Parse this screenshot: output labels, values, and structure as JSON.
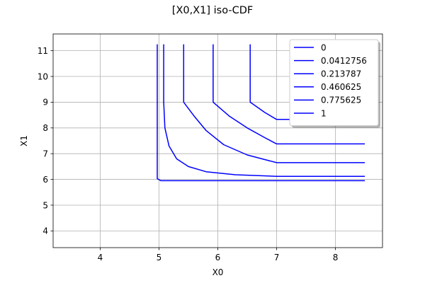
{
  "chart_data": {
    "type": "line",
    "title": "[X0,X1] iso-CDF",
    "xlabel": "X0",
    "ylabel": "X1",
    "xlim": [
      3.2,
      8.8
    ],
    "ylim": [
      3.35,
      11.65
    ],
    "xticks": [
      4,
      5,
      6,
      7,
      8
    ],
    "yticks": [
      4,
      5,
      6,
      7,
      8,
      9,
      10,
      11
    ],
    "grid": true,
    "legend_position": "top-right",
    "line_color": "#0000ff",
    "series": [
      {
        "name": "0",
        "x": [
          4.97,
          4.97,
          4.97,
          5.03,
          8.5
        ],
        "y": [
          11.25,
          9.0,
          6.03,
          5.95,
          5.95
        ]
      },
      {
        "name": "0.0412756",
        "x": [
          5.08,
          5.08,
          5.1,
          5.17,
          5.3,
          5.5,
          5.8,
          6.3,
          7.0,
          8.5
        ],
        "y": [
          11.25,
          9.0,
          8.0,
          7.3,
          6.8,
          6.5,
          6.3,
          6.18,
          6.12,
          6.12
        ]
      },
      {
        "name": "0.213787",
        "x": [
          5.42,
          5.42,
          5.6,
          5.8,
          6.1,
          6.5,
          7.0,
          8.5
        ],
        "y": [
          11.25,
          9.0,
          8.45,
          7.9,
          7.35,
          6.95,
          6.65,
          6.65
        ]
      },
      {
        "name": "0.460625",
        "x": [
          5.92,
          5.92,
          6.2,
          6.5,
          6.8,
          7.0,
          8.5
        ],
        "y": [
          11.25,
          9.0,
          8.45,
          8.0,
          7.62,
          7.38,
          7.38
        ]
      },
      {
        "name": "0.775625",
        "x": [
          6.55,
          6.55,
          6.8,
          7.0,
          8.5
        ],
        "y": [
          11.25,
          9.0,
          8.6,
          8.33,
          8.33
        ]
      },
      {
        "name": "1",
        "x": [],
        "y": []
      }
    ]
  }
}
